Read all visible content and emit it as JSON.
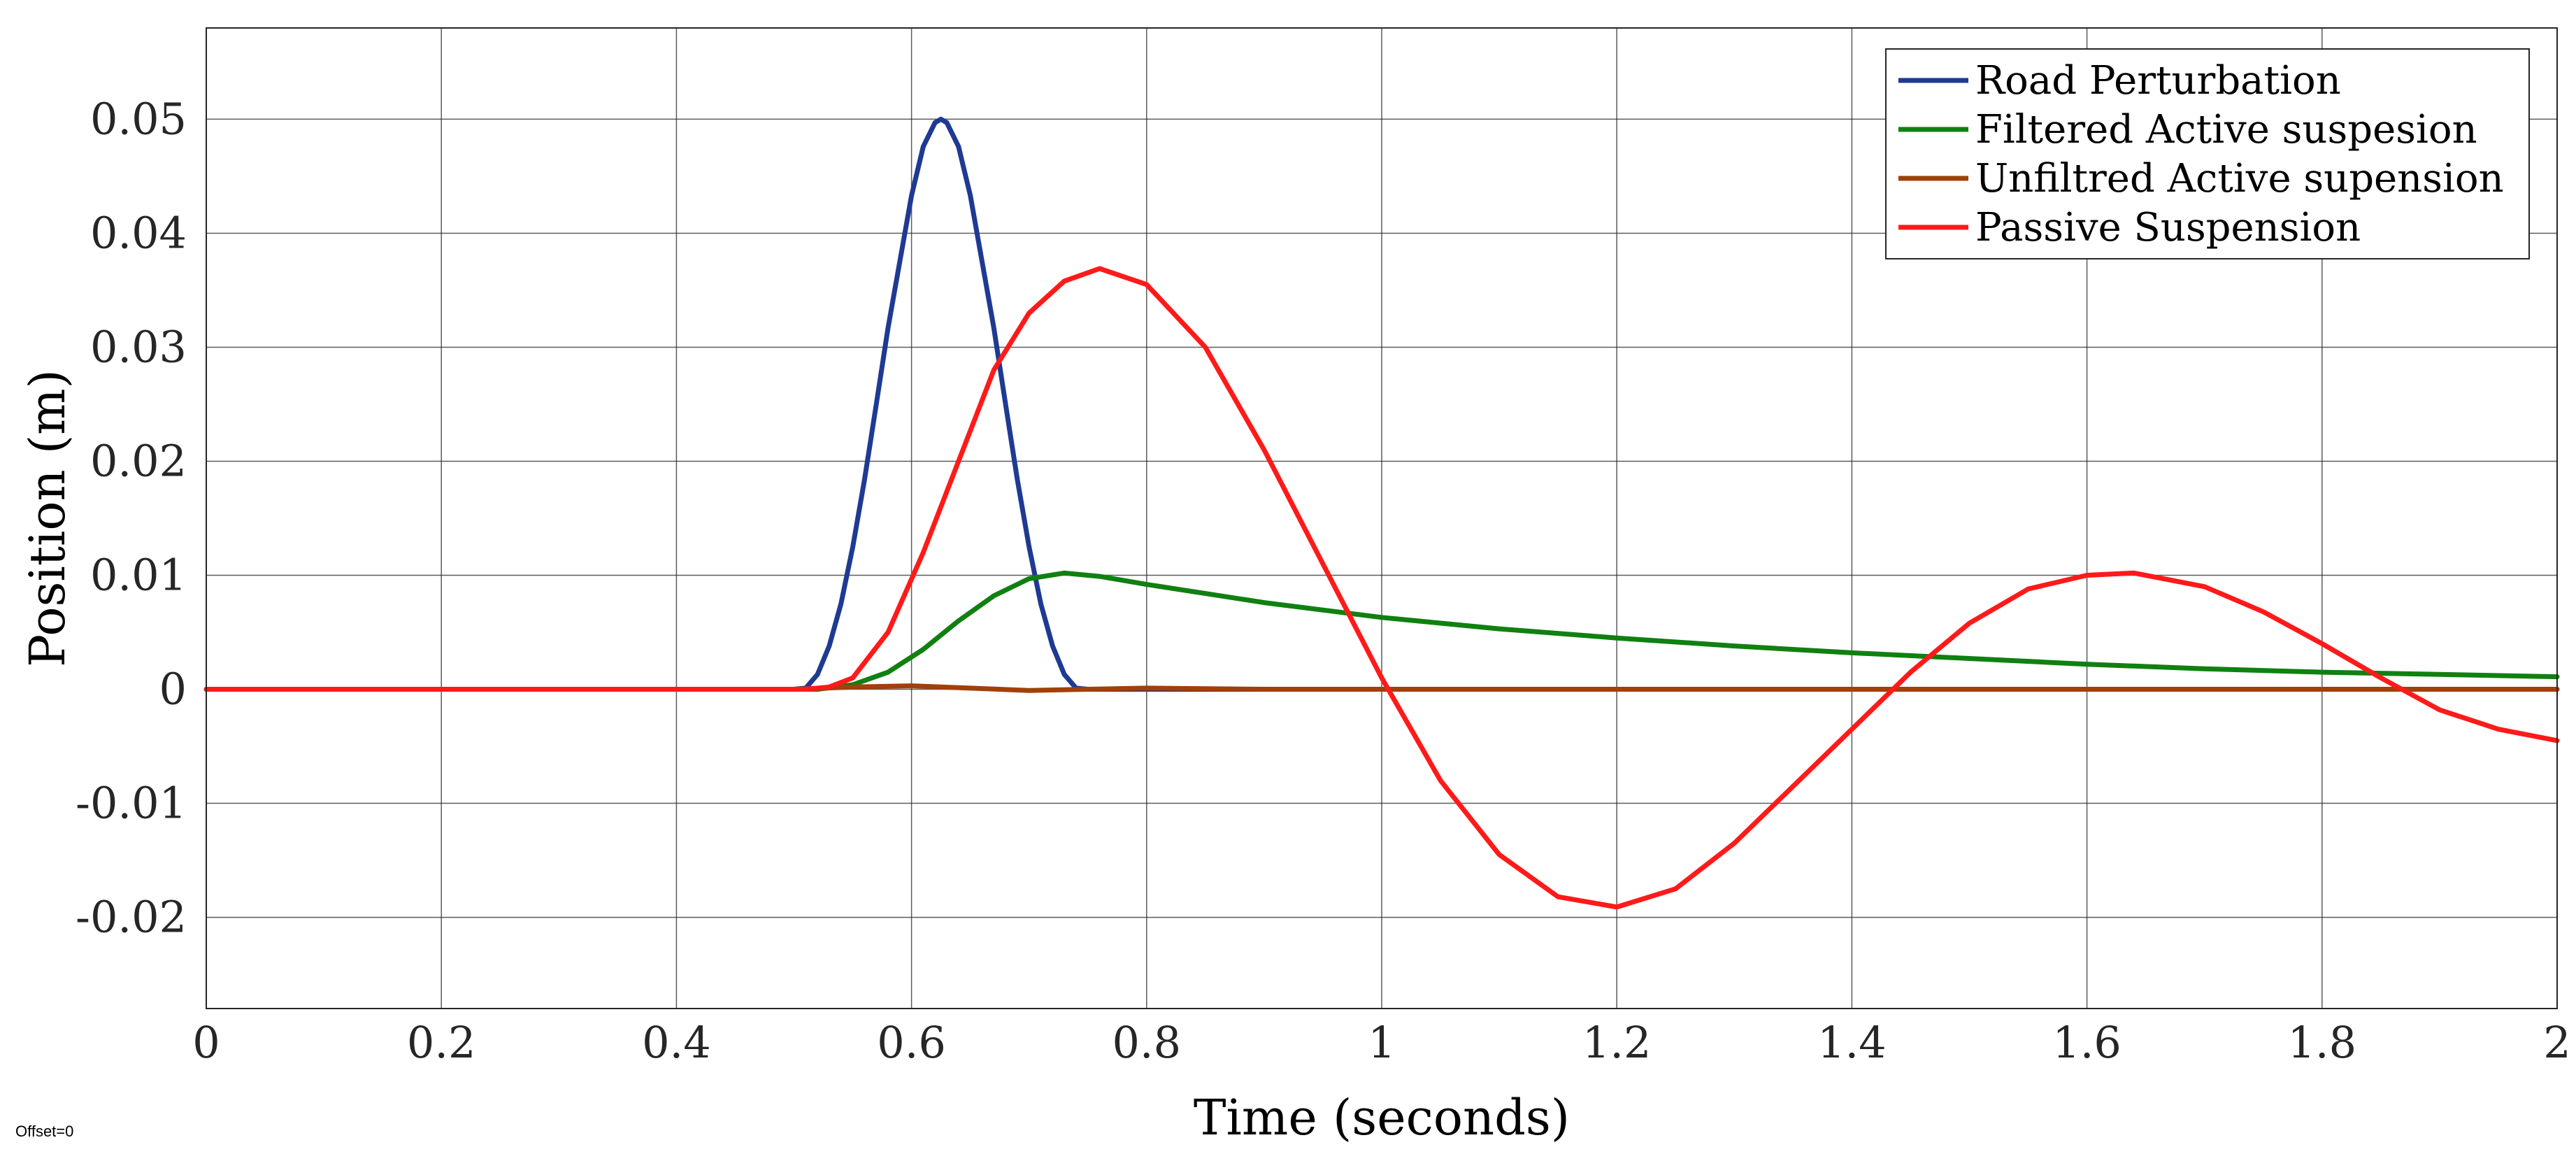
{
  "chart_data": {
    "type": "line",
    "xlabel": "Time (seconds)",
    "ylabel": "Position (m)",
    "xlim": [
      0,
      2
    ],
    "ylim": [
      -0.028,
      0.058
    ],
    "x_ticks": [
      0,
      0.2,
      0.4,
      0.6,
      0.8,
      1,
      1.2,
      1.4,
      1.6,
      1.8,
      2
    ],
    "x_tick_labels": [
      "0",
      "0.2",
      "0.4",
      "0.6",
      "0.8",
      "1",
      "1.2",
      "1.4",
      "1.6",
      "1.8",
      "2"
    ],
    "y_ticks": [
      -0.02,
      -0.01,
      0,
      0.01,
      0.02,
      0.03,
      0.04,
      0.05
    ],
    "y_tick_labels": [
      "-0.02",
      "-0.01",
      "0",
      "0.01",
      "0.02",
      "0.03",
      "0.04",
      "0.05"
    ],
    "grid": true,
    "legend_position": "top-right",
    "series": [
      {
        "name": "Road Perturbation",
        "color": "#1f3a93",
        "points": [
          [
            0,
            0
          ],
          [
            0.5,
            0
          ],
          [
            0.51,
            0.0001
          ],
          [
            0.52,
            0.0013
          ],
          [
            0.53,
            0.0038
          ],
          [
            0.54,
            0.0075
          ],
          [
            0.55,
            0.0125
          ],
          [
            0.56,
            0.0184
          ],
          [
            0.57,
            0.025
          ],
          [
            0.58,
            0.0317
          ],
          [
            0.59,
            0.0375
          ],
          [
            0.6,
            0.0433
          ],
          [
            0.61,
            0.0476
          ],
          [
            0.62,
            0.0497
          ],
          [
            0.625,
            0.05
          ],
          [
            0.63,
            0.0497
          ],
          [
            0.64,
            0.0476
          ],
          [
            0.65,
            0.0433
          ],
          [
            0.66,
            0.0375
          ],
          [
            0.67,
            0.0317
          ],
          [
            0.68,
            0.025
          ],
          [
            0.69,
            0.0184
          ],
          [
            0.7,
            0.0125
          ],
          [
            0.71,
            0.0075
          ],
          [
            0.72,
            0.0038
          ],
          [
            0.73,
            0.0013
          ],
          [
            0.74,
            0.0001
          ],
          [
            0.75,
            0
          ],
          [
            2,
            0
          ]
        ]
      },
      {
        "name": "Filtered Active suspesion",
        "color": "#108010",
        "points": [
          [
            0,
            0
          ],
          [
            0.52,
            0
          ],
          [
            0.55,
            0.0004
          ],
          [
            0.58,
            0.0015
          ],
          [
            0.61,
            0.0035
          ],
          [
            0.64,
            0.006
          ],
          [
            0.67,
            0.0082
          ],
          [
            0.7,
            0.0097
          ],
          [
            0.73,
            0.0102
          ],
          [
            0.76,
            0.0099
          ],
          [
            0.8,
            0.0092
          ],
          [
            0.85,
            0.0084
          ],
          [
            0.9,
            0.0076
          ],
          [
            1.0,
            0.0063
          ],
          [
            1.1,
            0.0053
          ],
          [
            1.2,
            0.0045
          ],
          [
            1.3,
            0.0038
          ],
          [
            1.4,
            0.0032
          ],
          [
            1.5,
            0.0027
          ],
          [
            1.6,
            0.0022
          ],
          [
            1.7,
            0.0018
          ],
          [
            1.8,
            0.0015
          ],
          [
            1.9,
            0.0013
          ],
          [
            2.0,
            0.0011
          ]
        ]
      },
      {
        "name": "Unfiltred Active supension",
        "color": "#a0400a",
        "points": [
          [
            0,
            0
          ],
          [
            0.5,
            0
          ],
          [
            0.55,
            0.0002
          ],
          [
            0.6,
            0.0003
          ],
          [
            0.65,
            0.0001
          ],
          [
            0.7,
            -0.0001
          ],
          [
            0.8,
            0.0001
          ],
          [
            0.9,
            0
          ],
          [
            1.2,
            0
          ],
          [
            1.6,
            0
          ],
          [
            2.0,
            0
          ]
        ]
      },
      {
        "name": "Passive Suspension",
        "color": "#ff1a1a",
        "points": [
          [
            0,
            0
          ],
          [
            0.51,
            0
          ],
          [
            0.53,
            0.0002
          ],
          [
            0.55,
            0.001
          ],
          [
            0.58,
            0.005
          ],
          [
            0.61,
            0.012
          ],
          [
            0.64,
            0.02
          ],
          [
            0.67,
            0.028
          ],
          [
            0.7,
            0.033
          ],
          [
            0.73,
            0.0358
          ],
          [
            0.76,
            0.0369
          ],
          [
            0.8,
            0.0355
          ],
          [
            0.85,
            0.03
          ],
          [
            0.9,
            0.021
          ],
          [
            0.95,
            0.011
          ],
          [
            1.0,
            0.001
          ],
          [
            1.05,
            -0.008
          ],
          [
            1.1,
            -0.0145
          ],
          [
            1.15,
            -0.0182
          ],
          [
            1.2,
            -0.0191
          ],
          [
            1.25,
            -0.0175
          ],
          [
            1.3,
            -0.0135
          ],
          [
            1.35,
            -0.0085
          ],
          [
            1.4,
            -0.0035
          ],
          [
            1.45,
            0.0015
          ],
          [
            1.5,
            0.0058
          ],
          [
            1.55,
            0.0088
          ],
          [
            1.6,
            0.01
          ],
          [
            1.64,
            0.0102
          ],
          [
            1.7,
            0.009
          ],
          [
            1.75,
            0.0068
          ],
          [
            1.8,
            0.004
          ],
          [
            1.85,
            0.001
          ],
          [
            1.9,
            -0.0018
          ],
          [
            1.95,
            -0.0035
          ],
          [
            2.0,
            -0.0045
          ]
        ]
      }
    ]
  },
  "footer": {
    "offset_text": "Offset=0"
  }
}
